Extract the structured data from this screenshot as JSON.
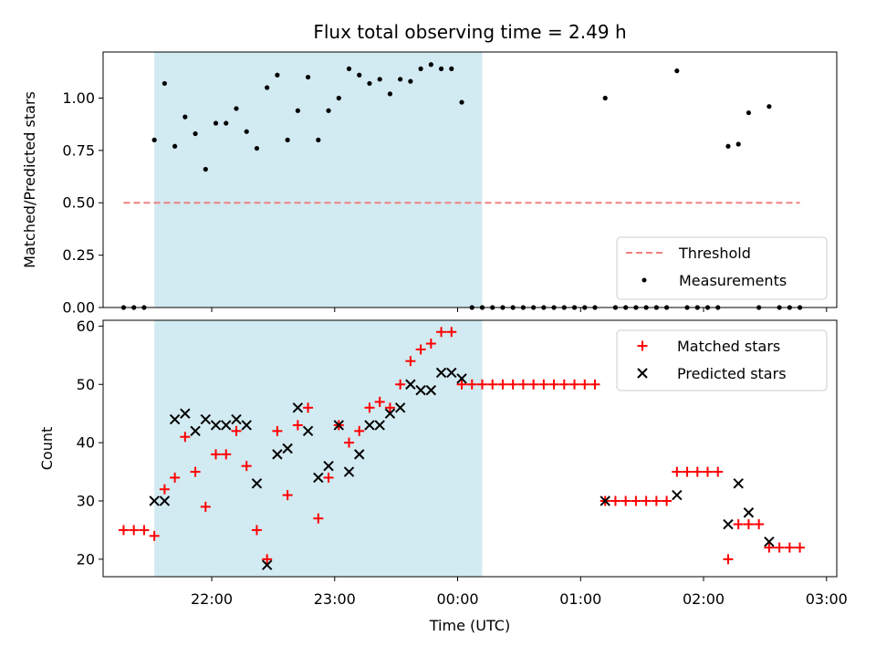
{
  "colors": {
    "shade": "#add8e6",
    "threshold": "#f08080",
    "matched": "#ff0000",
    "predicted": "#000000",
    "measurement": "#000000"
  },
  "chart_data": [
    {
      "type": "scatter",
      "title": "Flux total observing time = 2.49 h",
      "xlabel": "",
      "ylabel": "Matched/Predicted stars",
      "xlim": [
        "21:07",
        "03:05"
      ],
      "ylim": [
        0,
        1.22
      ],
      "yticks": [
        "0.00",
        "0.25",
        "0.50",
        "0.75",
        "1.00"
      ],
      "shaded_region": [
        "21:32",
        "00:12"
      ],
      "legend_position": "lower-right",
      "threshold": {
        "name": "Threshold",
        "y": 0.5,
        "x_start": "21:17",
        "x_end": "02:47"
      },
      "series": [
        {
          "name": "Measurements",
          "points": [
            [
              "21:17",
              0.0
            ],
            [
              "21:22",
              0.0
            ],
            [
              "21:27",
              0.0
            ],
            [
              "21:32",
              0.8
            ],
            [
              "21:37",
              1.07
            ],
            [
              "21:42",
              0.77
            ],
            [
              "21:47",
              0.91
            ],
            [
              "21:52",
              0.83
            ],
            [
              "21:57",
              0.66
            ],
            [
              "22:02",
              0.88
            ],
            [
              "22:07",
              0.88
            ],
            [
              "22:12",
              0.95
            ],
            [
              "22:17",
              0.84
            ],
            [
              "22:22",
              0.76
            ],
            [
              "22:27",
              1.05
            ],
            [
              "22:32",
              1.11
            ],
            [
              "22:37",
              0.8
            ],
            [
              "22:42",
              0.94
            ],
            [
              "22:47",
              1.1
            ],
            [
              "22:52",
              0.8
            ],
            [
              "22:57",
              0.94
            ],
            [
              "23:02",
              1.0
            ],
            [
              "23:07",
              1.14
            ],
            [
              "23:12",
              1.11
            ],
            [
              "23:17",
              1.07
            ],
            [
              "23:22",
              1.09
            ],
            [
              "23:27",
              1.02
            ],
            [
              "23:32",
              1.09
            ],
            [
              "23:37",
              1.08
            ],
            [
              "23:42",
              1.14
            ],
            [
              "23:47",
              1.16
            ],
            [
              "23:52",
              1.14
            ],
            [
              "23:57",
              1.14
            ],
            [
              "00:02",
              0.98
            ],
            [
              "00:07",
              0.0
            ],
            [
              "00:12",
              0.0
            ],
            [
              "00:17",
              0.0
            ],
            [
              "00:22",
              0.0
            ],
            [
              "00:27",
              0.0
            ],
            [
              "00:32",
              0.0
            ],
            [
              "00:37",
              0.0
            ],
            [
              "00:42",
              0.0
            ],
            [
              "00:47",
              0.0
            ],
            [
              "00:52",
              0.0
            ],
            [
              "00:57",
              0.0
            ],
            [
              "01:02",
              0.0
            ],
            [
              "01:07",
              0.0
            ],
            [
              "01:12",
              1.0
            ],
            [
              "01:17",
              0.0
            ],
            [
              "01:22",
              0.0
            ],
            [
              "01:27",
              0.0
            ],
            [
              "01:32",
              0.0
            ],
            [
              "01:37",
              0.0
            ],
            [
              "01:42",
              0.0
            ],
            [
              "01:47",
              1.13
            ],
            [
              "01:52",
              0.0
            ],
            [
              "01:57",
              0.0
            ],
            [
              "02:02",
              0.0
            ],
            [
              "02:07",
              0.0
            ],
            [
              "02:12",
              0.77
            ],
            [
              "02:17",
              0.78
            ],
            [
              "02:22",
              0.93
            ],
            [
              "02:27",
              0.0
            ],
            [
              "02:32",
              0.96
            ],
            [
              "02:37",
              0.0
            ],
            [
              "02:42",
              0.0
            ],
            [
              "02:47",
              0.0
            ]
          ]
        }
      ]
    },
    {
      "type": "scatter",
      "title": "",
      "xlabel": "Time (UTC)",
      "ylabel": "Count",
      "xlim": [
        "21:07",
        "03:05"
      ],
      "ylim": [
        17,
        61
      ],
      "yticks": [
        "20",
        "30",
        "40",
        "50",
        "60"
      ],
      "xticks": [
        "22:00",
        "23:00",
        "00:00",
        "01:00",
        "02:00",
        "03:00"
      ],
      "shaded_region": [
        "21:32",
        "00:12"
      ],
      "legend_position": "upper-right",
      "series": [
        {
          "name": "Matched stars",
          "marker": "plus",
          "points": [
            [
              "21:17",
              25
            ],
            [
              "21:22",
              25
            ],
            [
              "21:27",
              25
            ],
            [
              "21:32",
              24
            ],
            [
              "21:37",
              32
            ],
            [
              "21:42",
              34
            ],
            [
              "21:47",
              41
            ],
            [
              "21:52",
              35
            ],
            [
              "21:57",
              29
            ],
            [
              "22:02",
              38
            ],
            [
              "22:07",
              38
            ],
            [
              "22:12",
              42
            ],
            [
              "22:17",
              36
            ],
            [
              "22:22",
              25
            ],
            [
              "22:27",
              20
            ],
            [
              "22:32",
              42
            ],
            [
              "22:37",
              31
            ],
            [
              "22:42",
              43
            ],
            [
              "22:47",
              46
            ],
            [
              "22:52",
              27
            ],
            [
              "22:57",
              34
            ],
            [
              "23:02",
              43
            ],
            [
              "23:07",
              40
            ],
            [
              "23:12",
              42
            ],
            [
              "23:17",
              46
            ],
            [
              "23:22",
              47
            ],
            [
              "23:27",
              46
            ],
            [
              "23:32",
              50
            ],
            [
              "23:37",
              54
            ],
            [
              "23:42",
              56
            ],
            [
              "23:47",
              57
            ],
            [
              "23:52",
              59
            ],
            [
              "23:57",
              59
            ],
            [
              "00:02",
              50
            ],
            [
              "00:07",
              50
            ],
            [
              "00:12",
              50
            ],
            [
              "00:17",
              50
            ],
            [
              "00:22",
              50
            ],
            [
              "00:27",
              50
            ],
            [
              "00:32",
              50
            ],
            [
              "00:37",
              50
            ],
            [
              "00:42",
              50
            ],
            [
              "00:47",
              50
            ],
            [
              "00:52",
              50
            ],
            [
              "00:57",
              50
            ],
            [
              "01:02",
              50
            ],
            [
              "01:07",
              50
            ],
            [
              "01:12",
              30
            ],
            [
              "01:17",
              30
            ],
            [
              "01:22",
              30
            ],
            [
              "01:27",
              30
            ],
            [
              "01:32",
              30
            ],
            [
              "01:37",
              30
            ],
            [
              "01:42",
              30
            ],
            [
              "01:47",
              35
            ],
            [
              "01:52",
              35
            ],
            [
              "01:57",
              35
            ],
            [
              "02:02",
              35
            ],
            [
              "02:07",
              35
            ],
            [
              "02:12",
              20
            ],
            [
              "02:17",
              26
            ],
            [
              "02:22",
              26
            ],
            [
              "02:27",
              26
            ],
            [
              "02:32",
              22
            ],
            [
              "02:37",
              22
            ],
            [
              "02:42",
              22
            ],
            [
              "02:47",
              22
            ]
          ]
        },
        {
          "name": "Predicted stars",
          "marker": "x",
          "points": [
            [
              "21:32",
              30
            ],
            [
              "21:37",
              30
            ],
            [
              "21:42",
              44
            ],
            [
              "21:47",
              45
            ],
            [
              "21:52",
              42
            ],
            [
              "21:57",
              44
            ],
            [
              "22:02",
              43
            ],
            [
              "22:07",
              43
            ],
            [
              "22:12",
              44
            ],
            [
              "22:17",
              43
            ],
            [
              "22:22",
              33
            ],
            [
              "22:27",
              19
            ],
            [
              "22:32",
              38
            ],
            [
              "22:37",
              39
            ],
            [
              "22:42",
              46
            ],
            [
              "22:47",
              42
            ],
            [
              "22:52",
              34
            ],
            [
              "22:57",
              36
            ],
            [
              "23:02",
              43
            ],
            [
              "23:07",
              35
            ],
            [
              "23:12",
              38
            ],
            [
              "23:17",
              43
            ],
            [
              "23:22",
              43
            ],
            [
              "23:27",
              45
            ],
            [
              "23:32",
              46
            ],
            [
              "23:37",
              50
            ],
            [
              "23:42",
              49
            ],
            [
              "23:47",
              49
            ],
            [
              "23:52",
              52
            ],
            [
              "23:57",
              52
            ],
            [
              "00:02",
              51
            ],
            [
              "01:12",
              30
            ],
            [
              "01:47",
              31
            ],
            [
              "02:12",
              26
            ],
            [
              "02:17",
              33
            ],
            [
              "02:22",
              28
            ],
            [
              "02:32",
              23
            ]
          ]
        }
      ]
    }
  ]
}
